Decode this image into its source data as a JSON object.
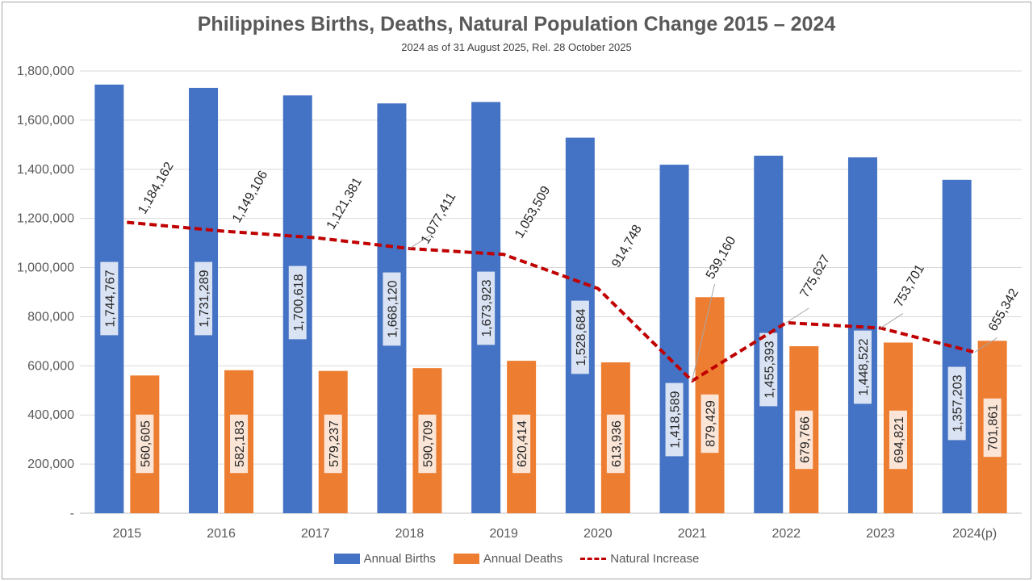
{
  "chart_data": {
    "type": "bar",
    "title": "Philippines Births, Deaths, Natural Population Change 2015 – 2024",
    "subtitle": "2024 as of 31 August 2025, Rel. 28 October 2025",
    "categories": [
      "2015",
      "2016",
      "2017",
      "2018",
      "2019",
      "2020",
      "2021",
      "2022",
      "2023",
      "2024(p)"
    ],
    "series": [
      {
        "name": "Annual Births",
        "kind": "bar",
        "color": "#4472c4",
        "values": [
          1744767,
          1731289,
          1700618,
          1668120,
          1673923,
          1528684,
          1418589,
          1455393,
          1448522,
          1357203
        ],
        "labels": [
          "1,744,767",
          "1,731,289",
          "1,700,618",
          "1,668,120",
          "1,673,923",
          "1,528,684",
          "1,418,589",
          "1,455,393",
          "1,448,522",
          "1,357,203"
        ]
      },
      {
        "name": "Annual Deaths",
        "kind": "bar",
        "color": "#ed7d31",
        "values": [
          560605,
          582183,
          579237,
          590709,
          620414,
          613936,
          879429,
          679766,
          694821,
          701861
        ],
        "labels": [
          "560,605",
          "582,183",
          "579,237",
          "590,709",
          "620,414",
          "613,936",
          "879,429",
          "679,766",
          "694,821",
          "701,861"
        ]
      },
      {
        "name": "Natural Increase",
        "kind": "line",
        "color": "#c00000",
        "values": [
          1184162,
          1149106,
          1121381,
          1077411,
          1053509,
          914748,
          539160,
          775627,
          753701,
          655342
        ],
        "labels": [
          "1,184,162",
          "1,149,106",
          "1,121,381",
          "1,077,411",
          "1,053,509",
          "914,748",
          "539,160",
          "775,627",
          "753,701",
          "655,342"
        ]
      }
    ],
    "ylim": [
      0,
      1800000
    ],
    "yticks": [
      0,
      200000,
      400000,
      600000,
      800000,
      1000000,
      1200000,
      1400000,
      1600000,
      1800000
    ],
    "ytick_labels": [
      "-",
      "200,000",
      "400,000",
      "600,000",
      "800,000",
      "1,000,000",
      "1,200,000",
      "1,400,000",
      "1,600,000",
      "1,800,000"
    ],
    "grid": true,
    "legend_position": "bottom"
  }
}
